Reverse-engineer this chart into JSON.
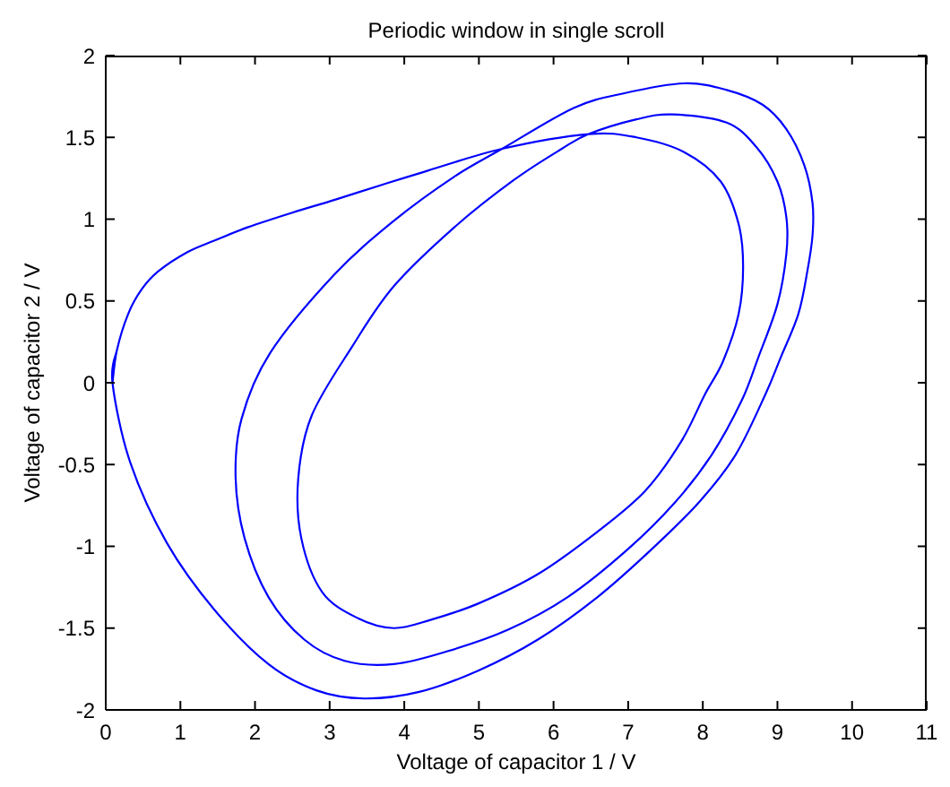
{
  "chart_data": {
    "type": "line",
    "title": "Periodic window in single scroll",
    "xlabel": "Voltage of capacitor 1 / V",
    "ylabel": "Voltage of capacitor 2 / V",
    "x": [
      0.09,
      0.15,
      0.3,
      0.48,
      0.7,
      1.1,
      1.46,
      1.9,
      2.5,
      3.08,
      3.7,
      4.27,
      5.31,
      6.47,
      7.11,
      7.75,
      8.24,
      8.48,
      8.54,
      8.48,
      8.27,
      8.03,
      7.71,
      7.23,
      6.59,
      5.79,
      4.99,
      4.35,
      3.86,
      3.38,
      2.9,
      2.62,
      2.58,
      2.76,
      3.3,
      3.86,
      4.67,
      5.47,
      6.11,
      6.47,
      7.11,
      7.59,
      8.32,
      8.72,
      9.0,
      9.12,
      9.12,
      9.0,
      8.74,
      8.52,
      8.12,
      7.63,
      6.99,
      6.19,
      5.39,
      4.59,
      3.86,
      3.2,
      2.66,
      2.18,
      1.86,
      1.74,
      1.82,
      2.2,
      3.06,
      3.86,
      4.67,
      5.31,
      6.27,
      6.95,
      7.75,
      8.32,
      8.8,
      9.12,
      9.36,
      9.47,
      9.47,
      9.4,
      9.28,
      9.04,
      8.84,
      8.44,
      7.95,
      7.31,
      6.59,
      5.79,
      4.99,
      4.2,
      3.46,
      2.82,
      2.18,
      1.46,
      0.82,
      0.33,
      0.09,
      0.15
    ],
    "values": [
      0.0,
      0.2,
      0.42,
      0.57,
      0.68,
      0.8,
      0.87,
      0.95,
      1.04,
      1.12,
      1.21,
      1.29,
      1.43,
      1.52,
      1.5,
      1.41,
      1.23,
      0.97,
      0.71,
      0.42,
      0.13,
      -0.07,
      -0.36,
      -0.66,
      -0.91,
      -1.17,
      -1.35,
      -1.45,
      -1.5,
      -1.44,
      -1.28,
      -0.95,
      -0.58,
      -0.2,
      0.22,
      0.59,
      0.95,
      1.24,
      1.43,
      1.52,
      1.61,
      1.64,
      1.59,
      1.44,
      1.23,
      1.01,
      0.79,
      0.48,
      0.15,
      -0.11,
      -0.44,
      -0.73,
      -1.02,
      -1.31,
      -1.51,
      -1.64,
      -1.72,
      -1.7,
      -1.57,
      -1.31,
      -0.95,
      -0.58,
      -0.22,
      0.18,
      0.66,
      0.99,
      1.26,
      1.43,
      1.68,
      1.77,
      1.83,
      1.79,
      1.7,
      1.55,
      1.33,
      1.1,
      0.9,
      0.68,
      0.42,
      0.15,
      -0.07,
      -0.44,
      -0.73,
      -1.02,
      -1.31,
      -1.57,
      -1.76,
      -1.89,
      -1.93,
      -1.88,
      -1.72,
      -1.39,
      -0.98,
      -0.49,
      0.0,
      0.2
    ],
    "color": "#0000ff",
    "line_style": "solid",
    "xlim": [
      0,
      11
    ],
    "xticks": [
      0,
      1,
      2,
      3,
      4,
      5,
      6,
      7,
      8,
      9,
      10,
      11
    ],
    "ylim": [
      -2,
      2
    ],
    "yticks": [
      -2,
      -1.5,
      -1,
      -0.5,
      0,
      0.5,
      1,
      1.5,
      2
    ]
  }
}
